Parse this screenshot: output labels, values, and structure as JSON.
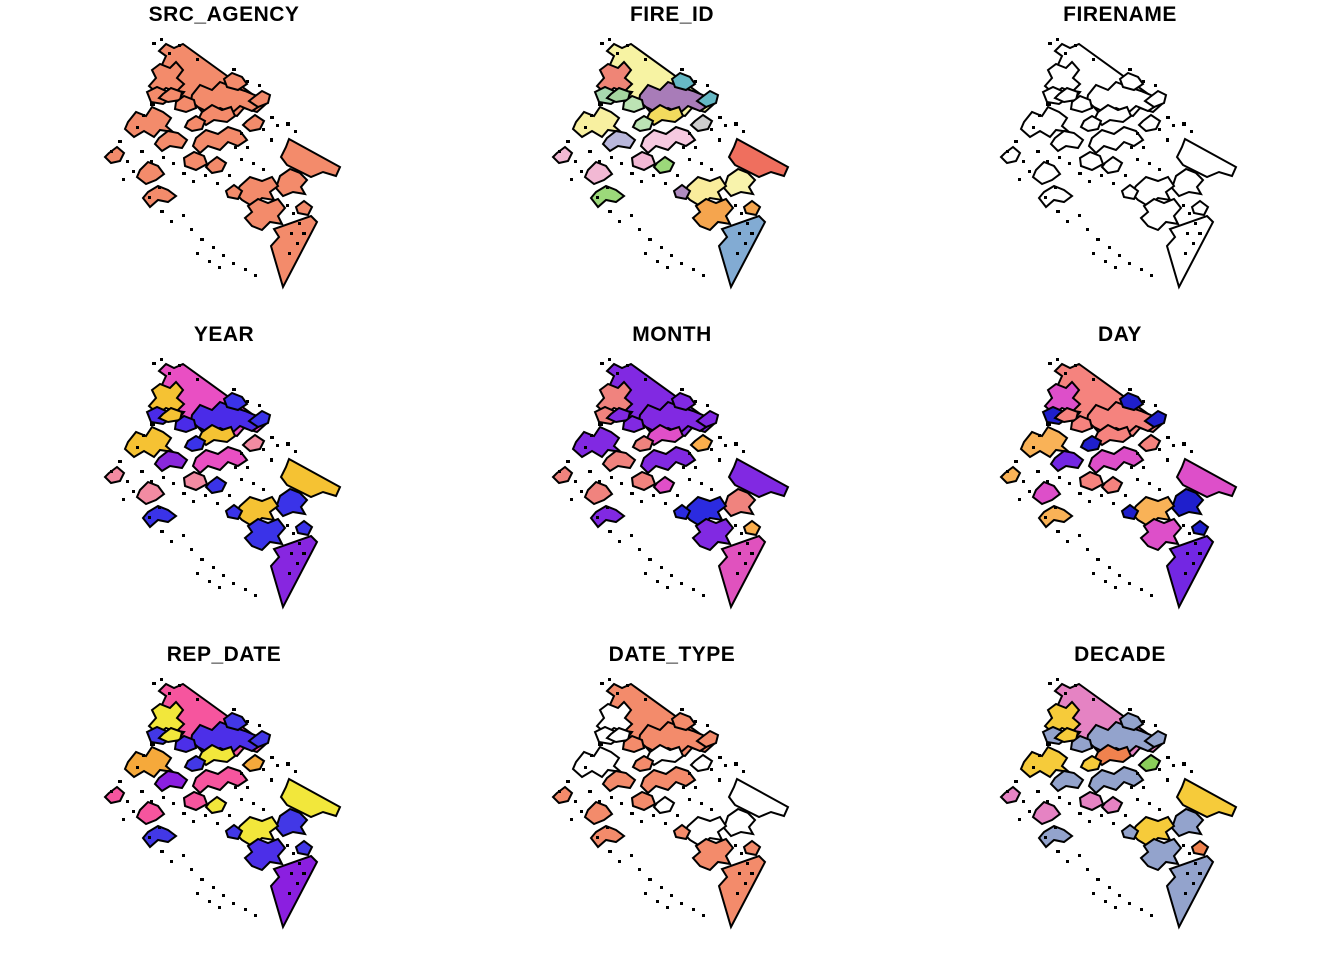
{
  "figure": {
    "background": "#FFFFFF",
    "outline_color": "#000000",
    "title_color": "#000000",
    "layout": {
      "rows": 3,
      "cols": 3
    },
    "description": "Nine-panel plot of the same fire-perimeter polygons colored by attribute"
  },
  "shape_names": [
    "top-strip",
    "upper-left-blob-a",
    "upper-left-blob-b",
    "left-star-blob",
    "central-large-blob",
    "central-yellow-blob",
    "central-small-a",
    "central-west-blob",
    "central-mid-blob",
    "central-south-blob",
    "northeast-strip",
    "east-mid-blob",
    "southeast-upper-blob",
    "southeast-lower-blob",
    "south-triangle",
    "triangle-north-blob",
    "southwest-blob-a",
    "southwest-blob-b",
    "mid-small-a",
    "mid-small-b",
    "upper-mid-small",
    "upper-left-small",
    "far-west-small",
    "central-east-small",
    "central-left-upper",
    "central-right-small"
  ],
  "panels": [
    {
      "title": "SRC_AGENCY",
      "fills": [
        "#F38B6B",
        "#F38B6B",
        "#F38B6B",
        "#F38B6B",
        "#F38B6B",
        "#F38B6B",
        "#F38B6B",
        "#F38B6B",
        "#F38B6B",
        "#F38B6B",
        "#F38B6B",
        "#F38B6B",
        "#F38B6B",
        "#F38B6B",
        "#F38B6B",
        "#F38B6B",
        "#F38B6B",
        "#F38B6B",
        "#F38B6B",
        "#F38B6B",
        "#F38B6B",
        "#F38B6B",
        "#F38B6B",
        "#F38B6B",
        "#F38B6B",
        "#F38B6B"
      ]
    },
    {
      "title": "FIRE_ID",
      "fills": [
        "#F7F3A3",
        "#EF8576",
        "#A8D8B0",
        "#F8F0A0",
        "#A87CB8",
        "#F2DB5E",
        "#BCE3B4",
        "#B9B7DC",
        "#F6C9E0",
        "#F2B8D4",
        "#EF6F5E",
        "#F8F3AC",
        "#F9EC9C",
        "#F5A54E",
        "#82ABD3",
        "#F5A54E",
        "#F2B8D4",
        "#9CD97A",
        "#9CD97A",
        "#B08CC0",
        "#66B8C4",
        "#A5D6A0",
        "#F2B8D4",
        "#CCCCCC",
        "#BCE3B4",
        "#66B8C4"
      ]
    },
    {
      "title": "FIRENAME",
      "fills": [
        "#FFFFFF",
        "#FFFFFF",
        "#FFFFFF",
        "#FFFFFF",
        "#FFFFFF",
        "#FFFFFF",
        "#FFFFFF",
        "#FFFFFF",
        "#FFFFFF",
        "#FFFFFF",
        "#FFFFFF",
        "#FFFFFF",
        "#FFFFFF",
        "#FFFFFF",
        "#FFFFFF",
        "#FFFFFF",
        "#FFFFFF",
        "#FFFFFF",
        "#FFFFFF",
        "#FFFFFF",
        "#FFFFFF",
        "#FFFFFF",
        "#FFFFFF",
        "#FFFFFF",
        "#FFFFFF",
        "#FFFFFF"
      ]
    },
    {
      "title": "YEAR",
      "fills": [
        "#E94FC3",
        "#F5C233",
        "#4A2BE8",
        "#F5C233",
        "#4A2BE8",
        "#F5C233",
        "#3A33E8",
        "#8A28DC",
        "#E94FC3",
        "#F28BA2",
        "#F5C233",
        "#3A33E8",
        "#F5C233",
        "#3A33E8",
        "#8726E0",
        "#3A33E8",
        "#F28BA2",
        "#3A33E8",
        "#3A33E8",
        "#3A33E8",
        "#3A33E8",
        "#F5C233",
        "#F28BA2",
        "#F28BA2",
        "#4A2BE8",
        "#3A33E8"
      ]
    },
    {
      "title": "MONTH",
      "fills": [
        "#8129E2",
        "#F0837E",
        "#F0837E",
        "#8129E2",
        "#8129E2",
        "#E04FC8",
        "#F0837E",
        "#F0837E",
        "#8129E2",
        "#F0837E",
        "#8129E2",
        "#F0837E",
        "#2B2BE0",
        "#8129E2",
        "#E052BE",
        "#FBAE4C",
        "#F0837E",
        "#8129E2",
        "#E04FC8",
        "#2B2BE0",
        "#8129E2",
        "#8129E2",
        "#F0837E",
        "#FBAE4C",
        "#8129E2",
        "#8129E2"
      ]
    },
    {
      "title": "DAY",
      "fills": [
        "#F5837E",
        "#DD4FC9",
        "#1F1FCC",
        "#F9B257",
        "#F5837E",
        "#F5837E",
        "#1F1FCC",
        "#7327E3",
        "#DD4FC9",
        "#F5837E",
        "#DD4FC9",
        "#1F1FCC",
        "#F9B257",
        "#DD4FC9",
        "#7327E3",
        "#1F1FCC",
        "#DD4FC9",
        "#F9B257",
        "#F5837E",
        "#1F1FCC",
        "#1F1FCC",
        "#F5837E",
        "#F9B257",
        "#F5837E",
        "#F5837E",
        "#1F1FCC"
      ]
    },
    {
      "title": "REP_DATE",
      "fills": [
        "#F6559E",
        "#F2E73B",
        "#4238E6",
        "#F5A93B",
        "#4C2FE8",
        "#F2E73B",
        "#4238E6",
        "#8B1FE0",
        "#F6559E",
        "#F6559E",
        "#F2E73B",
        "#4238E6",
        "#F2E73B",
        "#4C2FE8",
        "#8B1FE0",
        "#4238E6",
        "#F6559E",
        "#4238E6",
        "#F2E73B",
        "#4238E6",
        "#4238E6",
        "#F2E73B",
        "#F6559E",
        "#F5A93B",
        "#4C2FE8",
        "#4238E6"
      ]
    },
    {
      "title": "DATE_TYPE",
      "fills": [
        "#F38B6B",
        "#FFFFFF",
        "#FFFFFF",
        "#FFFFFF",
        "#F38B6B",
        "#FFFFFF",
        "#F38B6B",
        "#F38B6B",
        "#F38B6B",
        "#F38B6B",
        "#FFFFFF",
        "#FFFFFF",
        "#FFFFFF",
        "#F38B6B",
        "#F38B6B",
        "#F38B6B",
        "#F38B6B",
        "#F38B6B",
        "#FFFFFF",
        "#F38B6B",
        "#F38B6B",
        "#FFFFFF",
        "#F38B6B",
        "#FFFFFF",
        "#F38B6B",
        "#F38B6B"
      ]
    },
    {
      "title": "DECADE",
      "fills": [
        "#E583C3",
        "#F6CB3A",
        "#93A3CC",
        "#F6CB3A",
        "#93A3CC",
        "#F0824E",
        "#F6CB3A",
        "#93A3CC",
        "#93A3CC",
        "#E583C3",
        "#F6CB3A",
        "#93A3CC",
        "#F6CB3A",
        "#93A3CC",
        "#93A3CC",
        "#F0824E",
        "#E583C3",
        "#93A3CC",
        "#E583C3",
        "#93A3CC",
        "#93A3CC",
        "#F6CB3A",
        "#E583C3",
        "#8ACD5A",
        "#93A3CC",
        "#93A3CC"
      ]
    }
  ]
}
